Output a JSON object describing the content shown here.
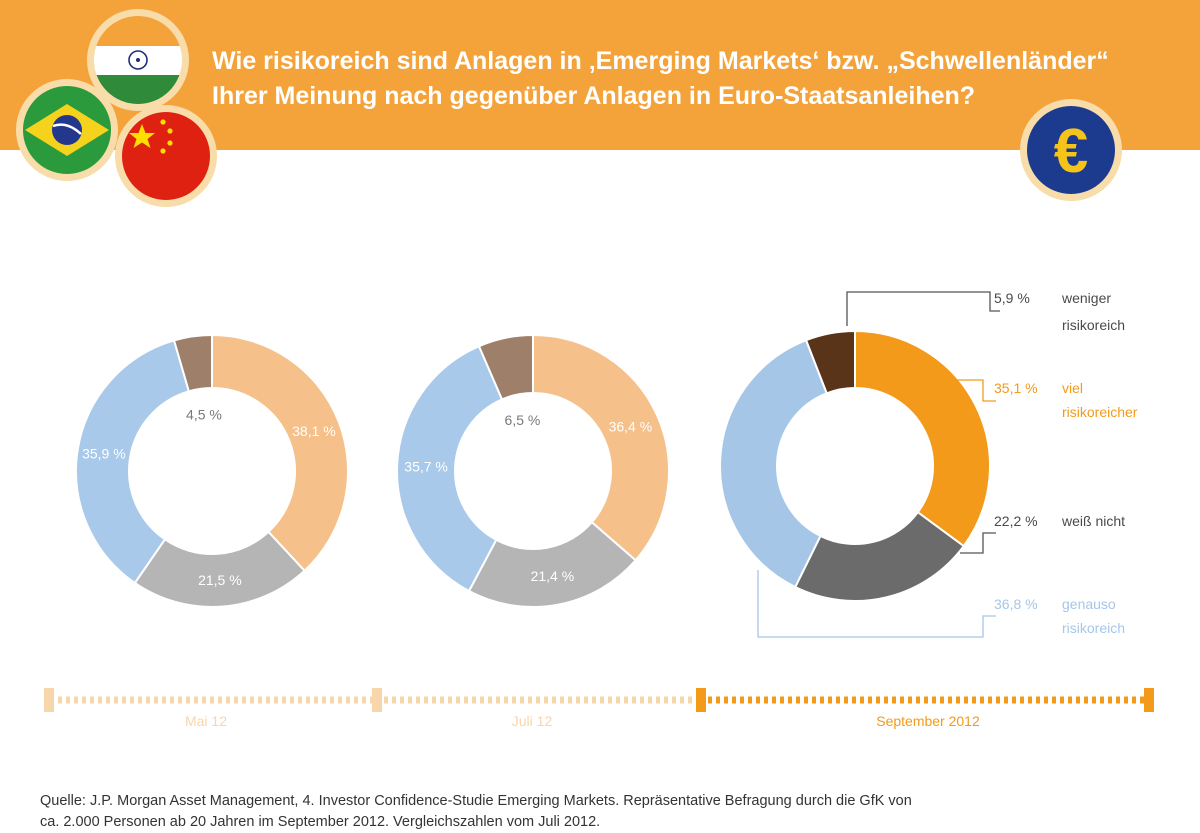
{
  "header": {
    "title_line1": "Wie risikoreich sind Anlagen in ‚Emerging Markets‘ bzw. „Schwellenländer“",
    "title_line2": "Ihrer Meinung nach gegenüber Anlagen in Euro-Staatsanleihen?",
    "flags": [
      "India",
      "Brazil",
      "China"
    ],
    "euro_symbol": "€"
  },
  "colors": {
    "banner": "#f4a23a",
    "viel": "#f5c08a",
    "gleich": "#a9c9ea",
    "weiss": "#b5b5b5",
    "weniger": "#9e7f6a",
    "viel_current": "#f39a1a",
    "gleich_current": "#a6c6e8",
    "weiss_current": "#6b6b6b",
    "weniger_current": "#5a3418"
  },
  "chart_data": {
    "type": "pie",
    "title": "Wie risikoreich sind Anlagen in ‚Emerging Markets‘ bzw. „Schwellenländer“ Ihrer Meinung nach gegenüber Anlagen in Euro-Staatsanleihen?",
    "categories": [
      "viel risikoreicher",
      "weiß nicht",
      "genauso risikoreich",
      "weniger risikoreich"
    ],
    "series": [
      {
        "name": "Mai 12",
        "values": [
          38.1,
          21.5,
          35.9,
          4.5
        ],
        "labels": [
          "38,1 %",
          "21,5 %",
          "35,9 %",
          "4,5 %"
        ]
      },
      {
        "name": "Juli 12",
        "values": [
          36.4,
          21.4,
          35.7,
          6.5
        ],
        "labels": [
          "36,4 %",
          "21,4 %",
          "35,7 %",
          "6,5 %"
        ]
      },
      {
        "name": "September 2012",
        "values": [
          35.1,
          22.2,
          36.8,
          5.9
        ],
        "labels": [
          "35,1 %",
          "22,2 %",
          "36,8 %",
          "5,9 %"
        ]
      }
    ],
    "legend": [
      {
        "key": "weniger",
        "value": "5,9 %",
        "line1": "weniger",
        "line2": "risikoreich"
      },
      {
        "key": "viel",
        "value": "35,1 %",
        "line1": "viel",
        "line2": "risikoreicher"
      },
      {
        "key": "weiss",
        "value": "22,2 %",
        "line1": "weiß nicht",
        "line2": ""
      },
      {
        "key": "gleich",
        "value": "36,8 %",
        "line1": "genauso",
        "line2": "risikoreich"
      }
    ],
    "timeline": [
      "Mai 12",
      "Juli 12",
      "September 2012"
    ]
  },
  "source": {
    "line1": "Quelle: J.P. Morgan Asset Management, 4. Investor Confidence-Studie Emerging Markets. Repräsentative Befragung durch die GfK von",
    "line2": "ca. 2.000 Personen ab 20 Jahren im September 2012. Vergleichszahlen vom Juli 2012."
  }
}
